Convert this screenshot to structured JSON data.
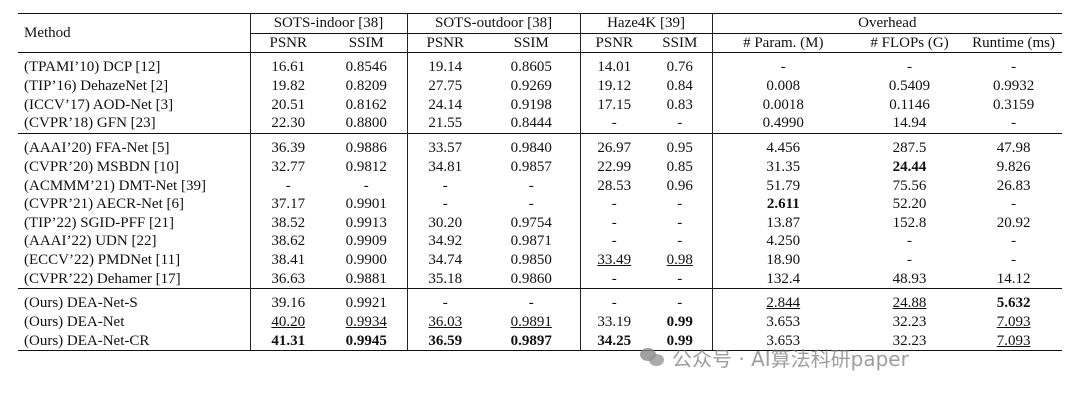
{
  "header": {
    "method": "Method",
    "sots_indoor": "SOTS-indoor [38]",
    "sots_outdoor": "SOTS-outdoor [38]",
    "haze4k": "Haze4K [39]",
    "overhead": "Overhead",
    "psnr": "PSNR",
    "ssim": "SSIM",
    "params": "# Param. (M)",
    "flops": "# FLOPs (G)",
    "runtime": "Runtime (ms)"
  },
  "groups": [
    [
      {
        "method": "(TPAMI’10) DCP [12]",
        "cells": [
          {
            "v": "16.61"
          },
          {
            "v": "0.8546"
          },
          {
            "v": "19.14"
          },
          {
            "v": "0.8605"
          },
          {
            "v": "14.01"
          },
          {
            "v": "0.76"
          },
          {
            "v": "-"
          },
          {
            "v": "-"
          },
          {
            "v": "-"
          }
        ]
      },
      {
        "method": "(TIP’16) DehazeNet [2]",
        "cells": [
          {
            "v": "19.82"
          },
          {
            "v": "0.8209"
          },
          {
            "v": "27.75"
          },
          {
            "v": "0.9269"
          },
          {
            "v": "19.12"
          },
          {
            "v": "0.84"
          },
          {
            "v": "0.008"
          },
          {
            "v": "0.5409"
          },
          {
            "v": "0.9932"
          }
        ]
      },
      {
        "method": "(ICCV’17) AOD-Net [3]",
        "cells": [
          {
            "v": "20.51"
          },
          {
            "v": "0.8162"
          },
          {
            "v": "24.14"
          },
          {
            "v": "0.9198"
          },
          {
            "v": "17.15"
          },
          {
            "v": "0.83"
          },
          {
            "v": "0.0018"
          },
          {
            "v": "0.1146"
          },
          {
            "v": "0.3159"
          }
        ]
      },
      {
        "method": "(CVPR’18) GFN [23]",
        "cells": [
          {
            "v": "22.30"
          },
          {
            "v": "0.8800"
          },
          {
            "v": "21.55"
          },
          {
            "v": "0.8444"
          },
          {
            "v": "-"
          },
          {
            "v": "-"
          },
          {
            "v": "0.4990"
          },
          {
            "v": "14.94"
          },
          {
            "v": "-"
          }
        ]
      }
    ],
    [
      {
        "method": "(AAAI’20) FFA-Net [5]",
        "cells": [
          {
            "v": "36.39"
          },
          {
            "v": "0.9886"
          },
          {
            "v": "33.57"
          },
          {
            "v": "0.9840"
          },
          {
            "v": "26.97"
          },
          {
            "v": "0.95"
          },
          {
            "v": "4.456"
          },
          {
            "v": "287.5"
          },
          {
            "v": "47.98"
          }
        ]
      },
      {
        "method": "(CVPR’20) MSBDN [10]",
        "cells": [
          {
            "v": "32.77"
          },
          {
            "v": "0.9812"
          },
          {
            "v": "34.81"
          },
          {
            "v": "0.9857"
          },
          {
            "v": "22.99"
          },
          {
            "v": "0.85"
          },
          {
            "v": "31.35"
          },
          {
            "v": "24.44",
            "b": true
          },
          {
            "v": "9.826"
          }
        ]
      },
      {
        "method": "(ACMMM’21) DMT-Net [39]",
        "cells": [
          {
            "v": "-"
          },
          {
            "v": "-"
          },
          {
            "v": "-"
          },
          {
            "v": "-"
          },
          {
            "v": "28.53"
          },
          {
            "v": "0.96"
          },
          {
            "v": "51.79"
          },
          {
            "v": "75.56"
          },
          {
            "v": "26.83"
          }
        ]
      },
      {
        "method": "(CVPR’21) AECR-Net [6]",
        "cells": [
          {
            "v": "37.17"
          },
          {
            "v": "0.9901"
          },
          {
            "v": "-"
          },
          {
            "v": "-"
          },
          {
            "v": "-"
          },
          {
            "v": "-"
          },
          {
            "v": "2.611",
            "b": true
          },
          {
            "v": "52.20"
          },
          {
            "v": "-"
          }
        ]
      },
      {
        "method": "(TIP’22) SGID-PFF [21]",
        "cells": [
          {
            "v": "38.52"
          },
          {
            "v": "0.9913"
          },
          {
            "v": "30.20"
          },
          {
            "v": "0.9754"
          },
          {
            "v": "-"
          },
          {
            "v": "-"
          },
          {
            "v": "13.87"
          },
          {
            "v": "152.8"
          },
          {
            "v": "20.92"
          }
        ]
      },
      {
        "method": "(AAAI’22) UDN [22]",
        "cells": [
          {
            "v": "38.62"
          },
          {
            "v": "0.9909"
          },
          {
            "v": "34.92"
          },
          {
            "v": "0.9871"
          },
          {
            "v": "-"
          },
          {
            "v": "-"
          },
          {
            "v": "4.250"
          },
          {
            "v": "-"
          },
          {
            "v": "-"
          }
        ]
      },
      {
        "method": "(ECCV’22) PMDNet [11]",
        "cells": [
          {
            "v": "38.41"
          },
          {
            "v": "0.9900"
          },
          {
            "v": "34.74"
          },
          {
            "v": "0.9850"
          },
          {
            "v": "33.49",
            "u": true
          },
          {
            "v": "0.98",
            "u": true
          },
          {
            "v": "18.90"
          },
          {
            "v": "-"
          },
          {
            "v": "-"
          }
        ]
      },
      {
        "method": "(CVPR’22) Dehamer [17]",
        "cells": [
          {
            "v": "36.63"
          },
          {
            "v": "0.9881"
          },
          {
            "v": "35.18"
          },
          {
            "v": "0.9860"
          },
          {
            "v": "-"
          },
          {
            "v": "-"
          },
          {
            "v": "132.4"
          },
          {
            "v": "48.93"
          },
          {
            "v": "14.12"
          }
        ]
      }
    ],
    [
      {
        "method": "(Ours) DEA-Net-S",
        "cells": [
          {
            "v": "39.16"
          },
          {
            "v": "0.9921"
          },
          {
            "v": "-"
          },
          {
            "v": "-"
          },
          {
            "v": "-"
          },
          {
            "v": "-"
          },
          {
            "v": "2.844",
            "u": true
          },
          {
            "v": "24.88",
            "u": true
          },
          {
            "v": "5.632",
            "b": true
          }
        ]
      },
      {
        "method": "(Ours) DEA-Net",
        "cells": [
          {
            "v": "40.20",
            "u": true
          },
          {
            "v": "0.9934",
            "u": true
          },
          {
            "v": "36.03",
            "u": true
          },
          {
            "v": "0.9891",
            "u": true
          },
          {
            "v": "33.19"
          },
          {
            "v": "0.99",
            "b": true
          },
          {
            "v": "3.653"
          },
          {
            "v": "32.23"
          },
          {
            "v": "7.093",
            "u": true
          }
        ]
      },
      {
        "method": "(Ours) DEA-Net-CR",
        "cells": [
          {
            "v": "41.31",
            "b": true
          },
          {
            "v": "0.9945",
            "b": true
          },
          {
            "v": "36.59",
            "b": true
          },
          {
            "v": "0.9897",
            "b": true
          },
          {
            "v": "34.25",
            "b": true
          },
          {
            "v": "0.99",
            "b": true
          },
          {
            "v": "3.653"
          },
          {
            "v": "32.23"
          },
          {
            "v": "7.093",
            "u": true
          }
        ]
      }
    ]
  ],
  "watermark": {
    "text": "公众号 · AI算法科研paper",
    "icon": "wechat-logo-icon"
  }
}
